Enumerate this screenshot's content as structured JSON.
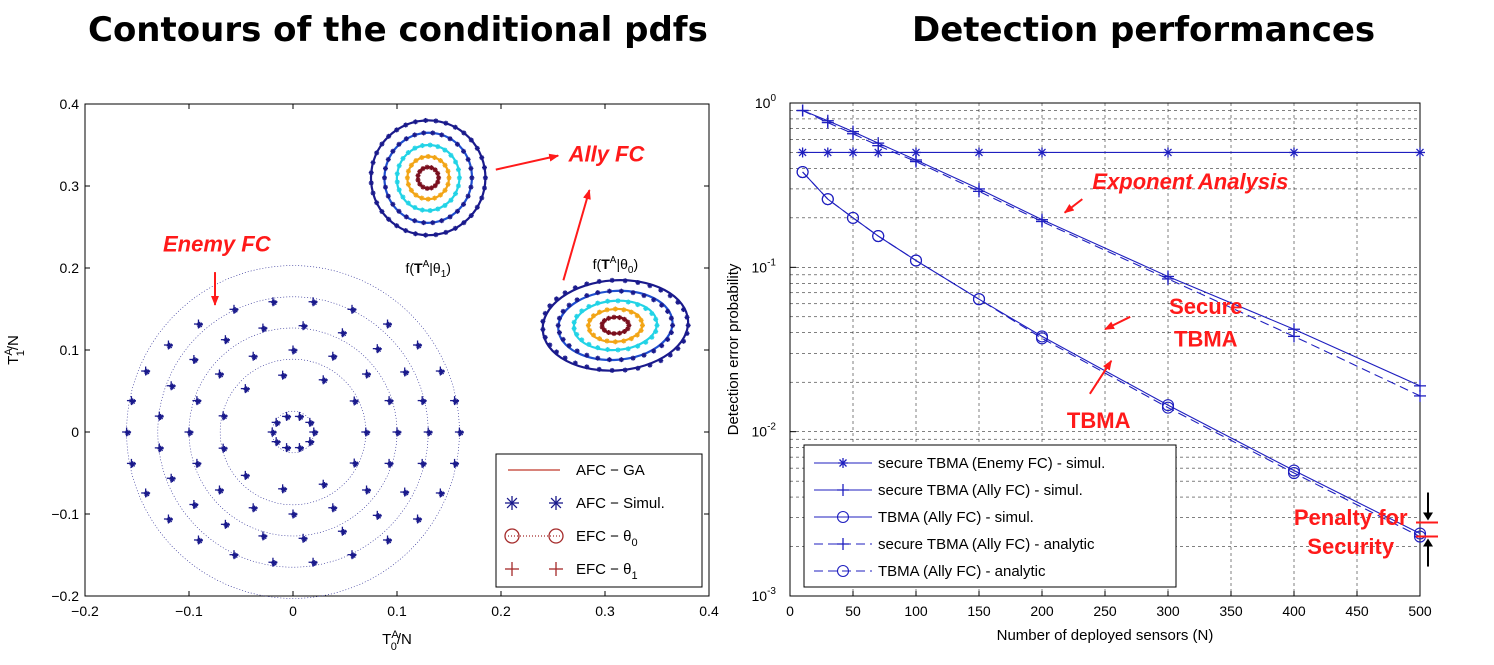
{
  "titles": {
    "left": "Contours of the conditional pdfs",
    "right": "Detection performances"
  },
  "colors": {
    "axis": "#000000",
    "series_blue": "#1f1fbf",
    "marker_navy": "#1a1a8c",
    "annotation_red": "#ff1a1a",
    "contour_cyan": "#22d3e6",
    "contour_orange": "#f2a516",
    "contour_darkred": "#7a0f1e"
  },
  "chart_data": [
    {
      "type": "scatter",
      "title": "Contours of the conditional pdfs",
      "xlabel": "T0A/N",
      "xlabel_base": "T",
      "xlabel_sup": "A",
      "xlabel_sub": "0",
      "xlabel_tail": "/N",
      "ylabel": "T1A/N",
      "ylabel_base": "T",
      "ylabel_sup": "A",
      "ylabel_sub": "1",
      "ylabel_tail": "/N",
      "xlim": [
        -0.2,
        0.4
      ],
      "ylim": [
        -0.2,
        0.4
      ],
      "xticks": [
        -0.2,
        -0.1,
        0,
        0.1,
        0.2,
        0.3,
        0.4
      ],
      "xtick_labels": [
        "−0.2",
        "−0.1",
        "0",
        "0.1",
        "0.2",
        "0.3",
        "0.4"
      ],
      "yticks": [
        -0.2,
        -0.1,
        0,
        0.1,
        0.2,
        0.3,
        0.4
      ],
      "ytick_labels": [
        "−0.2",
        "−0.1",
        "0",
        "0.1",
        "0.2",
        "0.3",
        "0.4"
      ],
      "grid": false,
      "enemy_contour_radii": [
        0.02,
        0.07,
        0.1,
        0.13,
        0.16
      ],
      "ally_contours": [
        {
          "center": [
            0.13,
            0.31
          ],
          "radii_x": [
            0.055,
            0.042,
            0.03,
            0.02,
            0.01
          ],
          "radii_y": [
            0.07,
            0.055,
            0.04,
            0.026,
            0.013
          ],
          "colors": [
            "#1a1a8c",
            "#1f4fd0",
            "#22d3e6",
            "#f2a516",
            "#7a0f1e"
          ]
        },
        {
          "center": [
            0.31,
            0.13
          ],
          "radii_x": [
            0.07,
            0.055,
            0.04,
            0.026,
            0.013
          ],
          "radii_y": [
            0.055,
            0.042,
            0.03,
            0.02,
            0.01
          ],
          "colors": [
            "#1a1a8c",
            "#1f4fd0",
            "#22d3e6",
            "#f2a516",
            "#7a0f1e"
          ]
        }
      ],
      "pdf_labels": [
        {
          "prefix": "f(",
          "bold": "T",
          "sup": "A",
          "mid": "|θ",
          "sub": "1",
          "suffix": ")",
          "at": [
            0.13,
            0.2
          ]
        },
        {
          "prefix": "f(",
          "bold": "T",
          "sup": "A",
          "mid": "|θ",
          "sub": "0",
          "suffix": ")",
          "at": [
            0.31,
            0.205
          ]
        }
      ],
      "annotations": [
        {
          "text": "Enemy FC",
          "at": [
            -0.125,
            0.22
          ],
          "arrow_from": [
            -0.075,
            0.195
          ],
          "arrow_to": [
            -0.075,
            0.155
          ]
        },
        {
          "text": "Ally FC",
          "at": [
            0.265,
            0.33
          ],
          "arrow_from": [
            0.195,
            0.32
          ],
          "arrow_to": [
            0.255,
            0.337
          ]
        },
        {
          "text": "",
          "arrow_from": [
            0.26,
            0.185
          ],
          "arrow_to": [
            0.285,
            0.295
          ]
        }
      ],
      "legend": [
        {
          "label": "AFC − GA",
          "style": "line",
          "color": "#c0392b"
        },
        {
          "label": "AFC − Simul.",
          "style": "star",
          "color": "#1a1a8c"
        },
        {
          "label": "EFC − θ",
          "sub": "0",
          "style": "circle-dotted",
          "color": "#a52a2a"
        },
        {
          "label": "EFC − θ",
          "sub": "1",
          "style": "plus",
          "color": "#a52a2a"
        }
      ]
    },
    {
      "type": "line",
      "title": "Detection performances",
      "xlabel": "Number of deployed sensors (N)",
      "ylabel": "Detection error probability",
      "xlim": [
        0,
        500
      ],
      "ylim_log10": [
        -3,
        0
      ],
      "yscale": "log",
      "xticks": [
        0,
        50,
        100,
        150,
        200,
        250,
        300,
        350,
        400,
        450,
        500
      ],
      "yticks": [
        0.001,
        0.01,
        0.1,
        1
      ],
      "ytick_labels": [
        {
          "base": "10",
          "exp": "-3"
        },
        {
          "base": "10",
          "exp": "-2"
        },
        {
          "base": "10",
          "exp": "-1"
        },
        {
          "base": "10",
          "exp": "0"
        }
      ],
      "grid": true,
      "legend_position": "bottom-left",
      "series": [
        {
          "name": "secure TBMA (Enemy FC) - simul.",
          "marker": "star",
          "dash": "solid",
          "x": [
            10,
            30,
            50,
            70,
            100,
            150,
            200,
            300,
            400,
            500
          ],
          "y": [
            0.5,
            0.5,
            0.5,
            0.5,
            0.5,
            0.5,
            0.5,
            0.5,
            0.5,
            0.5
          ]
        },
        {
          "name": "secure TBMA (Ally FC) - simul.",
          "marker": "plus",
          "dash": "solid",
          "x": [
            10,
            30,
            50,
            70,
            100,
            150,
            200,
            300,
            400,
            500
          ],
          "y": [
            0.9,
            0.78,
            0.67,
            0.57,
            0.45,
            0.3,
            0.195,
            0.088,
            0.042,
            0.019
          ]
        },
        {
          "name": "TBMA (Ally FC) - simul.",
          "marker": "circle",
          "dash": "solid",
          "x": [
            10,
            30,
            50,
            70,
            100,
            150,
            200,
            300,
            400,
            500
          ],
          "y": [
            0.38,
            0.26,
            0.2,
            0.155,
            0.11,
            0.064,
            0.038,
            0.0145,
            0.0058,
            0.0024
          ]
        },
        {
          "name": "secure TBMA (Ally FC) - analytic",
          "marker": "plus",
          "dash": "dashed",
          "x": [
            10,
            30,
            50,
            70,
            100,
            150,
            200,
            300,
            400,
            500
          ],
          "y": [
            0.9,
            0.76,
            0.65,
            0.55,
            0.44,
            0.29,
            0.19,
            0.085,
            0.038,
            0.0165
          ]
        },
        {
          "name": "TBMA (Ally FC) - analytic",
          "marker": "circle",
          "dash": "dashed",
          "x": [
            10,
            30,
            50,
            70,
            100,
            150,
            200,
            300,
            400,
            500
          ],
          "y": [
            0.38,
            0.26,
            0.2,
            0.155,
            0.11,
            0.064,
            0.037,
            0.014,
            0.0056,
            0.0023
          ]
        }
      ],
      "annotations": [
        {
          "text": "Exponent Analysis",
          "at": [
            240,
            0.3
          ],
          "arrow_from": [
            232,
            0.26
          ],
          "arrow_to": [
            218,
            0.215
          ]
        },
        {
          "text": "Secure",
          "at": [
            330,
            0.052
          ],
          "arrow_from": [
            270,
            0.05
          ],
          "arrow_to": [
            250,
            0.042
          ]
        },
        {
          "text": "TBMA",
          "at": [
            330,
            0.033
          ]
        },
        {
          "text": "TBMA",
          "at": [
            245,
            0.0105
          ],
          "arrow_from": [
            238,
            0.017
          ],
          "arrow_to": [
            255,
            0.027
          ]
        },
        {
          "text": "Penalty for",
          "at": [
            445,
            0.0027
          ]
        },
        {
          "text": "Security",
          "at": [
            445,
            0.0018
          ]
        }
      ]
    }
  ]
}
